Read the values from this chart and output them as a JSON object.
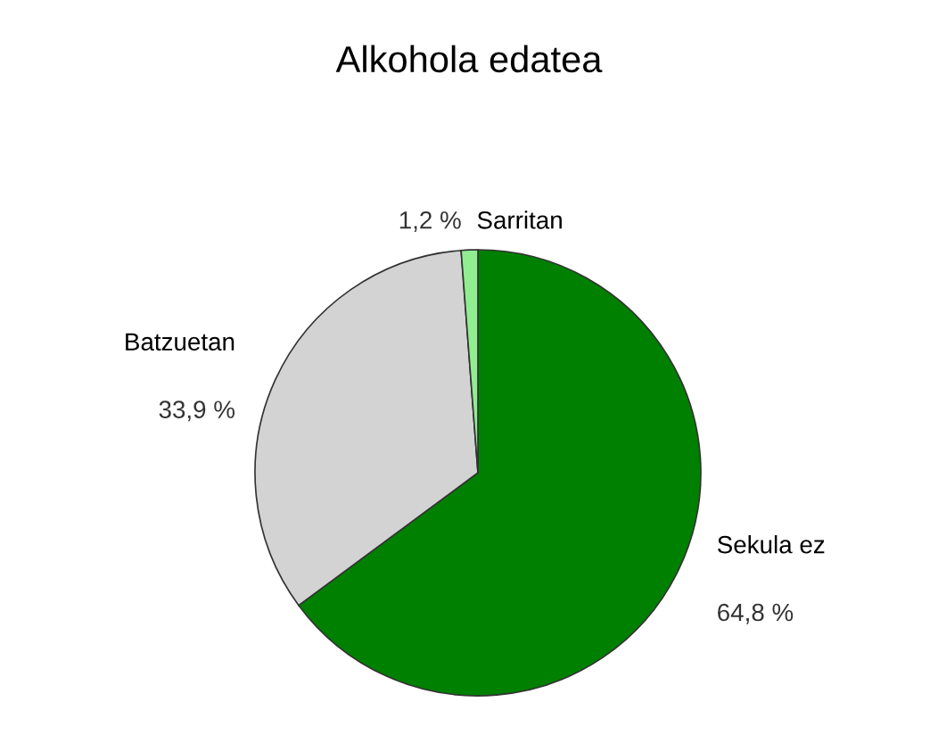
{
  "chart_data": {
    "type": "pie",
    "title": "Alkohola edatea",
    "categories": [
      "Sekula ez",
      "Batzuetan",
      "Sarritan"
    ],
    "values": [
      64.8,
      33.9,
      1.2
    ],
    "value_labels": [
      "64,8 %",
      "33,9 %",
      "1,2 %"
    ],
    "colors": [
      "#008000",
      "#d3d3d3",
      "#90ee90"
    ]
  }
}
